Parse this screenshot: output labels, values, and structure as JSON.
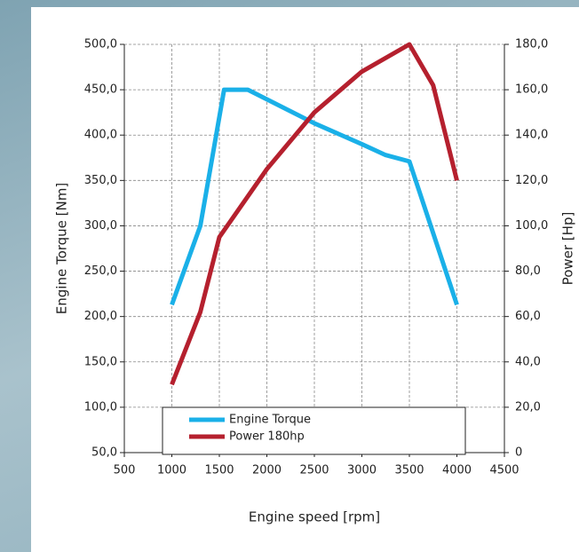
{
  "chart_data": {
    "type": "line",
    "xlabel": "Engine speed [rpm]",
    "ylabel": "Engine Torque  [Nm]",
    "y2label": "Power [Hp]",
    "xlim": [
      500,
      4500
    ],
    "xticks": [
      500,
      1000,
      1500,
      2000,
      2500,
      3000,
      3500,
      4000,
      4500
    ],
    "ylim": [
      50,
      500
    ],
    "yticks": [
      {
        "value": 50,
        "label": "50,0"
      },
      {
        "value": 100,
        "label": "100,0"
      },
      {
        "value": 150,
        "label": "150,0"
      },
      {
        "value": 200,
        "label": "200,0"
      },
      {
        "value": 250,
        "label": "250,0"
      },
      {
        "value": 300,
        "label": "300,0"
      },
      {
        "value": 350,
        "label": "350,0"
      },
      {
        "value": 400,
        "label": "400,0"
      },
      {
        "value": 450,
        "label": "450,0"
      },
      {
        "value": 500,
        "label": "500,0"
      }
    ],
    "y2lim": [
      0,
      180
    ],
    "y2ticks": [
      0,
      {
        "value": 20,
        "label": "20,0"
      },
      {
        "value": 40,
        "label": "40,0"
      },
      {
        "value": 60,
        "label": "60,0"
      },
      {
        "value": 80,
        "label": "80,0"
      },
      {
        "value": 100,
        "label": "100,0"
      },
      {
        "value": 120,
        "label": "120,0"
      },
      {
        "value": 140,
        "label": "140,0"
      },
      {
        "value": 160,
        "label": "160,0"
      },
      {
        "value": 180,
        "label": "180,0"
      }
    ],
    "grid": true,
    "legend": "lower left",
    "series": [
      {
        "name": "Engine Torque",
        "color": "#1ab0e8",
        "x": [
          1000,
          1300,
          1550,
          1800,
          2500,
          3000,
          3250,
          3500,
          4000
        ],
        "values": [
          213,
          300,
          450,
          450,
          413,
          390,
          378,
          371,
          213
        ]
      },
      {
        "name": "Power 180hp",
        "color": "#b5202e",
        "axis": "y2",
        "x": [
          1000,
          1300,
          1500,
          2000,
          2500,
          3000,
          3500,
          3750,
          4000
        ],
        "values": [
          30,
          62,
          95,
          125,
          150,
          168,
          180,
          162,
          120
        ]
      }
    ]
  }
}
